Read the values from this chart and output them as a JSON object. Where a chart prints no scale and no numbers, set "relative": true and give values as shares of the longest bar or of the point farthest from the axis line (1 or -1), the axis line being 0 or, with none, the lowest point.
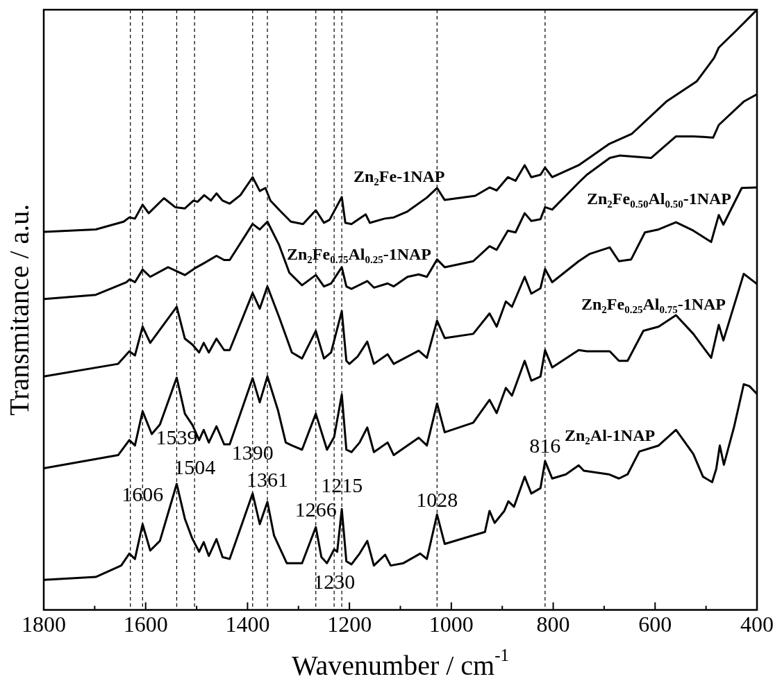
{
  "chart_data": {
    "type": "line",
    "relative": true,
    "xlabel": "Wavenumber / cm$^{-1}$",
    "ylabel": "Transmitance / a.u.",
    "xlim": [
      1800,
      400
    ],
    "xticks": [
      1800,
      {
        "value": 1700,
        "label": null
      },
      1600,
      {
        "value": 1500,
        "label": null
      },
      1400,
      {
        "value": 1300,
        "label": null
      },
      1200,
      {
        "value": 1100,
        "label": null
      },
      1000,
      {
        "value": 900,
        "label": null
      },
      800,
      {
        "value": 700,
        "label": null
      },
      600,
      {
        "value": 500,
        "label": null
      },
      400
    ],
    "marker": "none",
    "line_style": "solid",
    "series": [
      {
        "name": "Zn$_{2}$Fe-1NAP",
        "color": "#000000",
        "x": [
          1800,
          1698,
          1643,
          1632,
          1621,
          1606,
          1594,
          1564,
          1542,
          1523,
          1506,
          1498,
          1485,
          1472,
          1461,
          1449,
          1435,
          1414,
          1390,
          1376,
          1365,
          1355,
          1335,
          1315,
          1291,
          1266,
          1250,
          1239,
          1215,
          1208,
          1196,
          1168,
          1160,
          1131,
          1113,
          1086,
          1048,
          1028,
          1013,
          953,
          925,
          911,
          889,
          874,
          856,
          843,
          825,
          816,
          802,
          750,
          691,
          646,
          578,
          518,
          484,
          475,
          441,
          400
        ],
        "values": [
          0.63,
          0.634,
          0.647,
          0.654,
          0.652,
          0.675,
          0.661,
          0.686,
          0.671,
          0.669,
          0.682,
          0.68,
          0.691,
          0.682,
          0.694,
          0.682,
          0.677,
          0.691,
          0.721,
          0.698,
          0.703,
          0.682,
          0.664,
          0.647,
          0.643,
          0.666,
          0.645,
          0.65,
          0.688,
          0.645,
          0.643,
          0.659,
          0.645,
          0.652,
          0.654,
          0.664,
          0.687,
          0.703,
          0.683,
          0.69,
          0.704,
          0.699,
          0.721,
          0.715,
          0.741,
          0.721,
          0.725,
          0.737,
          0.721,
          0.741,
          0.776,
          0.793,
          0.847,
          0.881,
          0.92,
          0.937,
          0.965,
          1.0
        ]
      },
      {
        "name": "Zn$_{2}$Fe$_{0.75}$Al$_{0.25}$-1NAP",
        "color": "#000000",
        "x": [
          1800,
          1698,
          1638,
          1631,
          1621,
          1606,
          1591,
          1556,
          1523,
          1504,
          1485,
          1461,
          1446,
          1435,
          1390,
          1376,
          1361,
          1338,
          1318,
          1293,
          1266,
          1250,
          1236,
          1215,
          1206,
          1196,
          1165,
          1152,
          1125,
          1113,
          1086,
          1064,
          1048,
          1028,
          1013,
          957,
          925,
          911,
          889,
          874,
          856,
          843,
          825,
          816,
          802,
          750,
          734,
          689,
          670,
          608,
          559,
          525,
          486,
          475,
          426,
          400
        ],
        "values": [
          0.518,
          0.525,
          0.546,
          0.551,
          0.546,
          0.567,
          0.555,
          0.571,
          0.558,
          0.569,
          0.578,
          0.59,
          0.583,
          0.583,
          0.643,
          0.634,
          0.647,
          0.608,
          0.562,
          0.541,
          0.558,
          0.539,
          0.544,
          0.571,
          0.539,
          0.535,
          0.548,
          0.537,
          0.544,
          0.539,
          0.555,
          0.559,
          0.555,
          0.584,
          0.571,
          0.581,
          0.606,
          0.6,
          0.632,
          0.629,
          0.661,
          0.648,
          0.651,
          0.671,
          0.667,
          0.712,
          0.725,
          0.753,
          0.757,
          0.753,
          0.789,
          0.789,
          0.787,
          0.808,
          0.847,
          0.859
        ]
      },
      {
        "name": "Zn$_{2}$Fe$_{0.50}$Al$_{0.50}$-1NAP",
        "color": "#000000",
        "x": [
          1800,
          1654,
          1632,
          1621,
          1606,
          1591,
          1539,
          1523,
          1508,
          1495,
          1486,
          1476,
          1461,
          1446,
          1435,
          1390,
          1376,
          1361,
          1338,
          1313,
          1293,
          1266,
          1250,
          1236,
          1215,
          1206,
          1200,
          1184,
          1165,
          1152,
          1125,
          1113,
          1064,
          1048,
          1028,
          1013,
          957,
          925,
          911,
          893,
          881,
          856,
          843,
          825,
          816,
          802,
          750,
          729,
          689,
          671,
          647,
          620,
          593,
          559,
          525,
          490,
          475,
          466,
          430,
          400
        ],
        "values": [
          0.389,
          0.41,
          0.431,
          0.424,
          0.472,
          0.445,
          0.505,
          0.452,
          0.442,
          0.429,
          0.445,
          0.429,
          0.452,
          0.433,
          0.433,
          0.528,
          0.502,
          0.539,
          0.488,
          0.429,
          0.419,
          0.465,
          0.419,
          0.429,
          0.498,
          0.415,
          0.41,
          0.422,
          0.447,
          0.41,
          0.426,
          0.41,
          0.432,
          0.42,
          0.482,
          0.453,
          0.46,
          0.494,
          0.472,
          0.514,
          0.505,
          0.555,
          0.527,
          0.536,
          0.568,
          0.546,
          0.581,
          0.593,
          0.604,
          0.581,
          0.584,
          0.629,
          0.634,
          0.646,
          0.632,
          0.613,
          0.658,
          0.642,
          0.703,
          0.704
        ]
      },
      {
        "name": "Zn$_{2}$Fe$_{0.25}$Al$_{0.75}$-1NAP",
        "color": "#000000",
        "x": [
          1800,
          1654,
          1632,
          1621,
          1606,
          1588,
          1572,
          1539,
          1523,
          1508,
          1495,
          1486,
          1476,
          1461,
          1446,
          1435,
          1390,
          1376,
          1361,
          1340,
          1325,
          1313,
          1293,
          1266,
          1244,
          1230,
          1215,
          1206,
          1196,
          1180,
          1165,
          1152,
          1125,
          1113,
          1064,
          1048,
          1028,
          1013,
          957,
          925,
          911,
          893,
          881,
          856,
          843,
          825,
          816,
          802,
          750,
          734,
          689,
          671,
          654,
          623,
          593,
          559,
          525,
          490,
          475,
          466,
          426,
          400
        ],
        "values": [
          0.236,
          0.258,
          0.283,
          0.274,
          0.331,
          0.293,
          0.309,
          0.387,
          0.327,
          0.308,
          0.283,
          0.3,
          0.279,
          0.306,
          0.276,
          0.276,
          0.386,
          0.346,
          0.389,
          0.332,
          0.279,
          0.274,
          0.267,
          0.327,
          0.267,
          0.288,
          0.359,
          0.267,
          0.263,
          0.279,
          0.304,
          0.263,
          0.279,
          0.258,
          0.287,
          0.274,
          0.344,
          0.296,
          0.312,
          0.35,
          0.328,
          0.37,
          0.357,
          0.415,
          0.382,
          0.389,
          0.433,
          0.404,
          0.433,
          0.431,
          0.431,
          0.415,
          0.415,
          0.465,
          0.472,
          0.491,
          0.46,
          0.42,
          0.475,
          0.449,
          0.56,
          0.543
        ]
      },
      {
        "name": "Zn$_{2}$Al-1NAP",
        "color": "#000000",
        "x": [
          1800,
          1698,
          1648,
          1632,
          1621,
          1606,
          1591,
          1572,
          1539,
          1523,
          1509,
          1495,
          1486,
          1476,
          1461,
          1449,
          1435,
          1390,
          1376,
          1361,
          1348,
          1323,
          1293,
          1266,
          1255,
          1244,
          1230,
          1224,
          1215,
          1206,
          1196,
          1180,
          1165,
          1152,
          1130,
          1119,
          1094,
          1061,
          1048,
          1028,
          1013,
          962,
          934,
          925,
          915,
          896,
          888,
          877,
          856,
          843,
          825,
          816,
          802,
          775,
          750,
          740,
          691,
          671,
          654,
          631,
          593,
          559,
          525,
          506,
          488,
          480,
          473,
          465,
          445,
          426,
          415,
          400
        ],
        "values": [
          0.05,
          0.055,
          0.074,
          0.094,
          0.085,
          0.143,
          0.099,
          0.115,
          0.21,
          0.152,
          0.12,
          0.097,
          0.113,
          0.09,
          0.118,
          0.088,
          0.085,
          0.194,
          0.143,
          0.18,
          0.124,
          0.078,
          0.078,
          0.138,
          0.088,
          0.078,
          0.101,
          0.097,
          0.168,
          0.081,
          0.076,
          0.094,
          0.115,
          0.074,
          0.092,
          0.074,
          0.078,
          0.094,
          0.085,
          0.159,
          0.11,
          0.123,
          0.13,
          0.165,
          0.145,
          0.165,
          0.181,
          0.172,
          0.222,
          0.194,
          0.203,
          0.248,
          0.219,
          0.226,
          0.241,
          0.232,
          0.226,
          0.219,
          0.226,
          0.264,
          0.274,
          0.3,
          0.26,
          0.222,
          0.213,
          0.235,
          0.274,
          0.242,
          0.305,
          0.376,
          0.373,
          0.36
        ]
      }
    ],
    "ref_lines": [
      {
        "axis": "x",
        "value": 1630,
        "line_style": "dashed",
        "color": "#000000"
      },
      {
        "axis": "x",
        "value": 1606,
        "line_style": "dashed",
        "color": "#000000"
      },
      {
        "axis": "x",
        "value": 1539,
        "line_style": "dashed",
        "color": "#000000"
      },
      {
        "axis": "x",
        "value": 1504,
        "line_style": "dashed",
        "color": "#000000"
      },
      {
        "axis": "x",
        "value": 1390,
        "line_style": "dashed",
        "color": "#000000"
      },
      {
        "axis": "x",
        "value": 1361,
        "line_style": "dashed",
        "color": "#000000"
      },
      {
        "axis": "x",
        "value": 1266,
        "line_style": "dashed",
        "color": "#000000"
      },
      {
        "axis": "x",
        "value": 1230,
        "line_style": "dashed",
        "color": "#000000"
      },
      {
        "axis": "x",
        "value": 1215,
        "line_style": "dashed",
        "color": "#000000"
      },
      {
        "axis": "x",
        "value": 1028,
        "line_style": "dashed",
        "color": "#000000"
      },
      {
        "axis": "x",
        "value": 816,
        "line_style": "dashed",
        "color": "#000000"
      }
    ],
    "annotations": [
      {
        "text": "1606",
        "x": 1606,
        "y": 0.19
      },
      {
        "text": "1539",
        "x": 1539,
        "y": 0.285
      },
      {
        "text": "1504",
        "x": 1504,
        "y": 0.235
      },
      {
        "text": "1390",
        "x": 1390,
        "y": 0.26
      },
      {
        "text": "1361",
        "x": 1361,
        "y": 0.215
      },
      {
        "text": "1266",
        "x": 1266,
        "y": 0.165
      },
      {
        "text": "1215",
        "x": 1215,
        "y": 0.205
      },
      {
        "text": "1230",
        "x": 1230,
        "y": 0.045
      },
      {
        "text": "1028",
        "x": 1028,
        "y": 0.181
      },
      {
        "text": "816",
        "x": 816,
        "y": 0.271
      }
    ]
  }
}
